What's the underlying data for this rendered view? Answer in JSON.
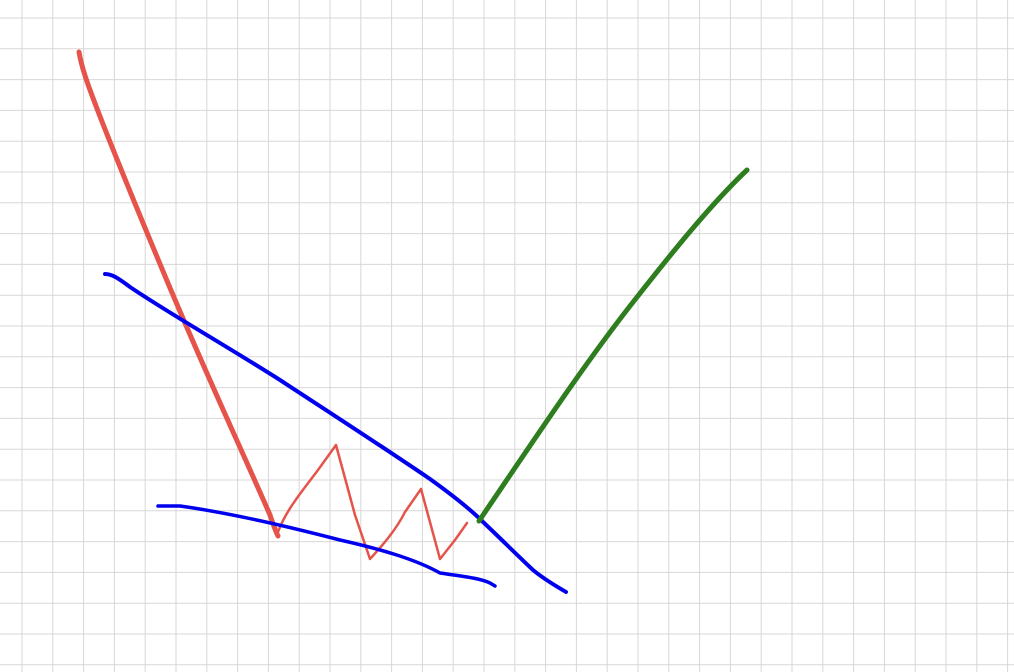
{
  "canvas": {
    "background": "#ffffff",
    "grid_color": "#d7d7d7"
  },
  "strokes": [
    {
      "name": "red-downtrend-stroke",
      "color": "#e5534b"
    },
    {
      "name": "red-zigzag-stroke",
      "color": "#e5534b"
    },
    {
      "name": "blue-upper-trendline",
      "color": "#0000ee"
    },
    {
      "name": "blue-lower-trendline",
      "color": "#0000ee"
    },
    {
      "name": "green-breakout-stroke",
      "color": "#2e7d1e"
    }
  ]
}
